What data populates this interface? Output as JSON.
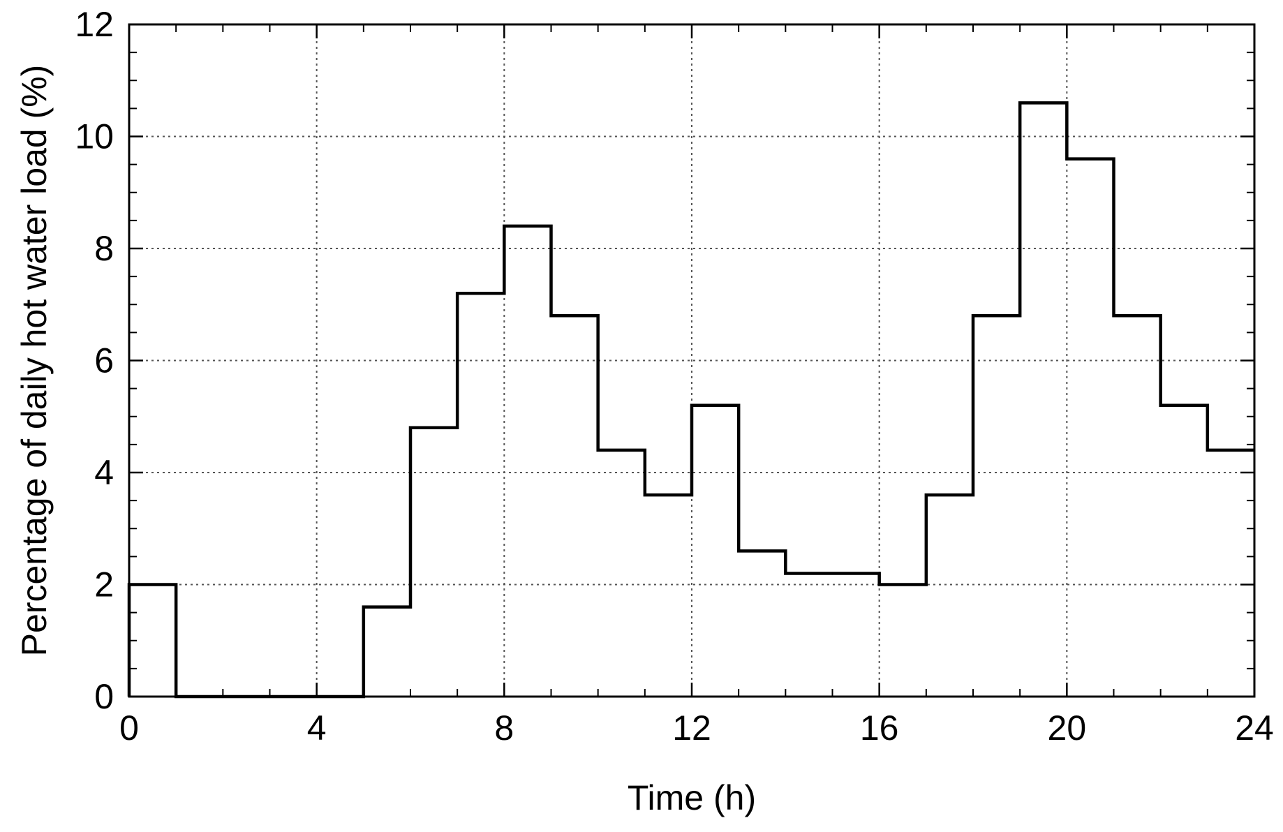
{
  "chart_data": {
    "type": "line",
    "style": "step",
    "title": "",
    "xlabel": "Time (h)",
    "ylabel": "Percentage of daily hot water load (%)",
    "xlim": [
      0,
      24
    ],
    "ylim": [
      0,
      12
    ],
    "x_ticks": [
      0,
      4,
      8,
      12,
      16,
      20,
      24
    ],
    "x_tick_labels": [
      "0",
      "4",
      "8",
      "12",
      "16",
      "20",
      "24"
    ],
    "y_ticks": [
      0,
      2,
      4,
      6,
      8,
      10,
      12
    ],
    "y_tick_labels": [
      "0",
      "2",
      "4",
      "6",
      "8",
      "10",
      "12"
    ],
    "grid": true,
    "grid_style": "dotted",
    "x": [
      0,
      1,
      2,
      3,
      4,
      5,
      6,
      7,
      8,
      9,
      10,
      11,
      12,
      13,
      14,
      15,
      16,
      17,
      18,
      19,
      20,
      21,
      22,
      23
    ],
    "series": [
      {
        "values": [
          2.0,
          0,
          0,
          0,
          0,
          1.6,
          4.8,
          7.2,
          8.4,
          6.8,
          4.4,
          3.6,
          5.2,
          2.6,
          2.2,
          2.2,
          2.0,
          3.6,
          6.8,
          10.6,
          9.6,
          6.8,
          5.2,
          4.4
        ],
        "color": "#000000"
      }
    ]
  }
}
